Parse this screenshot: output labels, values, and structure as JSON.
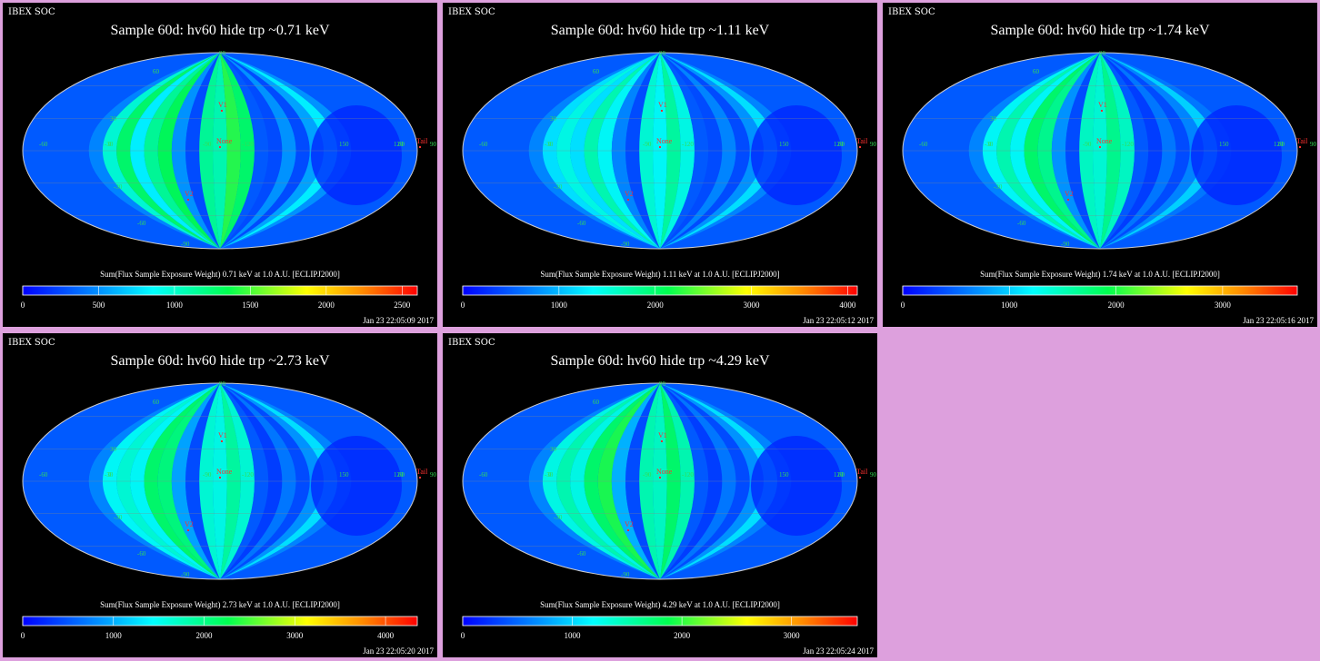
{
  "panels": [
    {
      "id": "p1",
      "corner_label": "IBEX SOC",
      "title": "Sample 60d: hv60 hide trp ~0.71 keV",
      "colorbar_label": "Sum(Flux Sample Exposure Weight)  0.71 keV at 1.0 A.U. [ECLIPJ2000]",
      "colorbar_ticks": [
        "0",
        "500",
        "1000",
        "1500",
        "2000",
        "2500"
      ],
      "colorbar_max": 2600,
      "timestamp": "Jan 23 22:05:09 2017"
    },
    {
      "id": "p2",
      "corner_label": "IBEX SOC",
      "title": "Sample 60d: hv60 hide trp ~1.11 keV",
      "colorbar_label": "Sum(Flux Sample Exposure Weight)  1.11 keV at 1.0 A.U. [ECLIPJ2000]",
      "colorbar_ticks": [
        "0",
        "1000",
        "2000",
        "3000",
        "4000"
      ],
      "colorbar_max": 4100,
      "timestamp": "Jan 23 22:05:12 2017"
    },
    {
      "id": "p3",
      "corner_label": "IBEX SOC",
      "title": "Sample 60d: hv60 hide trp ~1.74 keV",
      "colorbar_label": "Sum(Flux Sample Exposure Weight)  1.74 keV at 1.0 A.U. [ECLIPJ2000]",
      "colorbar_ticks": [
        "0",
        "1000",
        "2000",
        "3000"
      ],
      "colorbar_max": 3700,
      "timestamp": "Jan 23 22:05:16 2017"
    },
    {
      "id": "p4",
      "corner_label": "IBEX SOC",
      "title": "Sample 60d: hv60 hide trp ~2.73 keV",
      "colorbar_label": "Sum(Flux Sample Exposure Weight)  2.73 keV at 1.0 A.U. [ECLIPJ2000]",
      "colorbar_ticks": [
        "0",
        "1000",
        "2000",
        "3000",
        "4000"
      ],
      "colorbar_max": 4350,
      "timestamp": "Jan 23 22:05:20 2017"
    },
    {
      "id": "p5",
      "corner_label": "IBEX SOC",
      "title": "Sample 60d: hv60 hide trp ~4.29 keV",
      "colorbar_label": "Sum(Flux Sample Exposure Weight)  4.29 keV at 1.0 A.U. [ECLIPJ2000]",
      "colorbar_ticks": [
        "0",
        "1000",
        "2000",
        "3000"
      ],
      "colorbar_max": 3600,
      "timestamp": "Jan 23 22:05:24 2017"
    }
  ],
  "map_labels": {
    "markers": [
      "V1",
      "None",
      "V2",
      "Tail"
    ],
    "longitudes": [
      "-60",
      "-30",
      "0",
      "-90",
      "-120",
      "150",
      "120",
      "90",
      "60"
    ],
    "latitudes": [
      "30",
      "-30",
      "-60",
      "60",
      "-90",
      "90"
    ]
  },
  "colors": {
    "background": "#dda0dd",
    "panel": "#000000",
    "marker": "#ff3030",
    "grid_label": "#33dd55"
  }
}
